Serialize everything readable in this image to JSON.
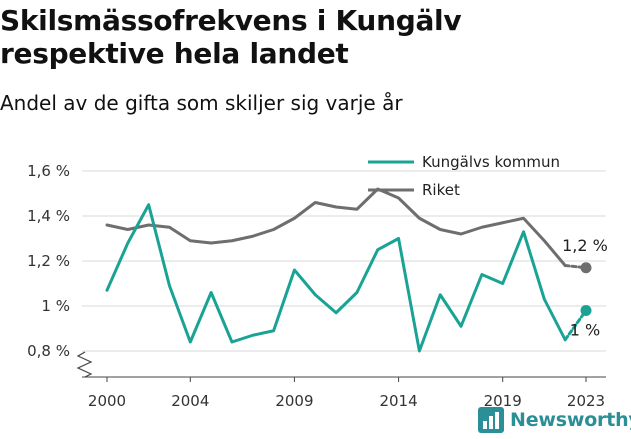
{
  "title": "Skilsmässofrekvens i Kungälv respektive hela landet",
  "subtitle": "Andel av de gifta som skiljer sig varje år",
  "brand": "Newsworthy",
  "chart_data": {
    "type": "line",
    "title": "Skilsmässofrekvens i Kungälv respektive hela landet",
    "subtitle": "Andel av de gifta som skiljer sig varje år",
    "x": [
      2000,
      2001,
      2002,
      2003,
      2004,
      2005,
      2006,
      2007,
      2008,
      2009,
      2010,
      2011,
      2012,
      2013,
      2014,
      2015,
      2016,
      2017,
      2018,
      2019,
      2020,
      2021,
      2022,
      2023
    ],
    "series": [
      {
        "name": "Kungälvs kommun",
        "color": "#1aa394",
        "values": [
          1.07,
          1.28,
          1.45,
          1.09,
          0.84,
          1.06,
          0.84,
          0.87,
          0.89,
          1.16,
          1.05,
          0.97,
          1.06,
          1.25,
          1.3,
          0.8,
          1.05,
          0.91,
          1.14,
          1.1,
          1.33,
          1.03,
          0.85,
          0.98
        ],
        "end_label": "1 %"
      },
      {
        "name": "Riket",
        "color": "#6e6e6e",
        "values": [
          1.36,
          1.34,
          1.36,
          1.35,
          1.29,
          1.28,
          1.29,
          1.31,
          1.34,
          1.39,
          1.46,
          1.44,
          1.43,
          1.52,
          1.48,
          1.39,
          1.34,
          1.32,
          1.35,
          1.37,
          1.39,
          1.29,
          1.18,
          1.17
        ],
        "end_label": "1,2 %"
      }
    ],
    "yticks": [
      0.8,
      1.0,
      1.2,
      1.4,
      1.6
    ],
    "ytick_labels": [
      "0,8 %",
      "1 %",
      "1,2 %",
      "1,4 %",
      "1,6 %"
    ],
    "xticks": [
      2000,
      2004,
      2009,
      2014,
      2019,
      2023
    ],
    "xtick_labels": [
      "2000",
      "2004",
      "2009",
      "2014",
      "2019",
      "2023"
    ],
    "ylim": [
      0.8,
      1.6
    ],
    "grid": true,
    "legend_position": "top-right",
    "y_axis_break": true
  }
}
